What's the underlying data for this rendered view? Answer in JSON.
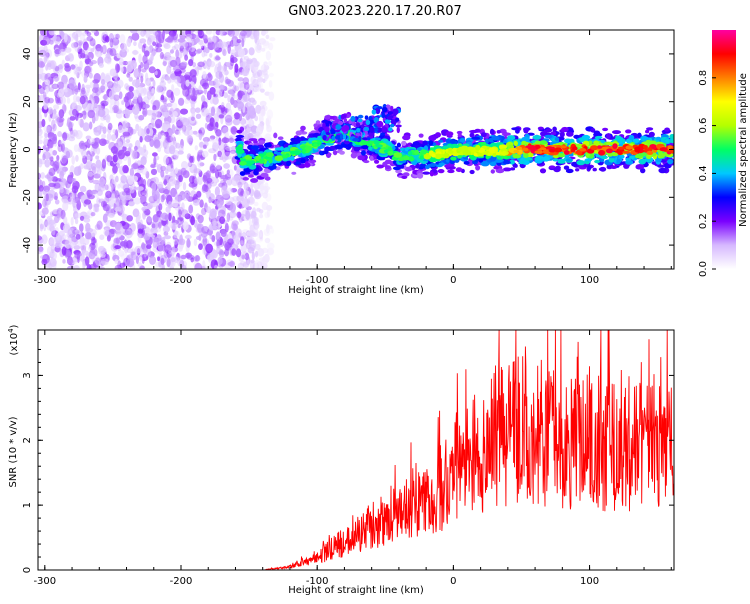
{
  "title": "GN03.2023.220.17.20.R07",
  "chart_data": [
    {
      "type": "heatmap",
      "xlabel": "Height of straight line (km)",
      "ylabel": "Frequency (Hz)",
      "xlim": [
        -305,
        162
      ],
      "ylim": [
        -50,
        50
      ],
      "xticks": [
        -300,
        -200,
        -100,
        0,
        100
      ],
      "yticks": [
        -40,
        -20,
        0,
        20,
        40
      ],
      "colorbar": {
        "label": "Normalized spectral amplitude",
        "range": [
          0,
          1
        ],
        "ticks": [
          0.0,
          0.2,
          0.4,
          0.6,
          0.8
        ],
        "colormap": [
          "#ffffff",
          "#d6b8ff",
          "#7a00ff",
          "#0000ff",
          "#00c8ff",
          "#00ff64",
          "#b4ff00",
          "#ffff00",
          "#ff8000",
          "#ff0000",
          "#ff00a0"
        ]
      },
      "description_features": {
        "noise_region_x": [
          -305,
          -140
        ],
        "signal_track": [
          {
            "x": -155,
            "y": -5
          },
          {
            "x": -130,
            "y": -3
          },
          {
            "x": -110,
            "y": 0
          },
          {
            "x": -90,
            "y": 5
          },
          {
            "x": -80,
            "y": 7
          },
          {
            "x": -70,
            "y": 4
          },
          {
            "x": -55,
            "y": 2
          },
          {
            "x": -40,
            "y": -3
          },
          {
            "x": -20,
            "y": -2
          },
          {
            "x": 0,
            "y": -1
          },
          {
            "x": 50,
            "y": 0
          },
          {
            "x": 100,
            "y": 0
          },
          {
            "x": 162,
            "y": 0
          }
        ]
      },
      "grid": false
    },
    {
      "type": "line",
      "xlabel": "Height of straight line (km)",
      "ylabel": "SNR (10 * v/v)",
      "y_multiplier_label": "(x10",
      "y_multiplier_exp": "4",
      "xlim": [
        -305,
        162
      ],
      "ylim": [
        0,
        3.7
      ],
      "xticks": [
        -300,
        -200,
        -100,
        0,
        100
      ],
      "yticks": [
        0,
        1,
        2,
        3
      ],
      "series": [
        {
          "color": "#ff0000",
          "envelope": [
            {
              "x": -305,
              "y": 0.0
            },
            {
              "x": -140,
              "y": 0.0
            },
            {
              "x": -120,
              "y": 0.05
            },
            {
              "x": -100,
              "y": 0.2
            },
            {
              "x": -80,
              "y": 0.45
            },
            {
              "x": -60,
              "y": 0.7
            },
            {
              "x": -40,
              "y": 0.9
            },
            {
              "x": -20,
              "y": 1.1
            },
            {
              "x": 0,
              "y": 1.5
            },
            {
              "x": 20,
              "y": 1.9
            },
            {
              "x": 40,
              "y": 2.2
            },
            {
              "x": 60,
              "y": 2.2
            },
            {
              "x": 80,
              "y": 2.1
            },
            {
              "x": 100,
              "y": 2.0
            },
            {
              "x": 130,
              "y": 2.0
            },
            {
              "x": 162,
              "y": 1.9
            }
          ]
        }
      ],
      "grid": false
    }
  ]
}
